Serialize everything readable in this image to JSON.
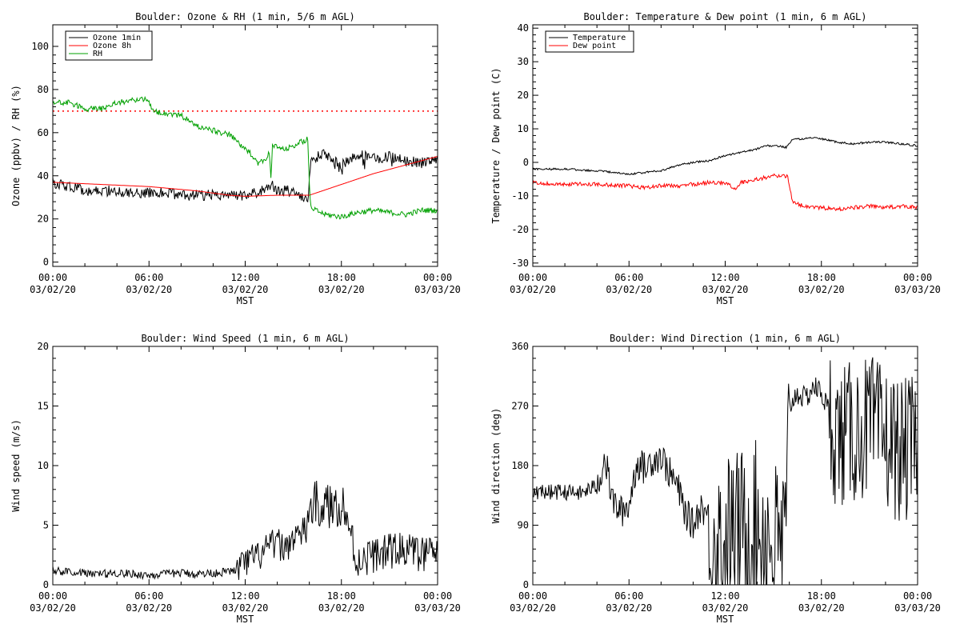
{
  "colors": {
    "black": "#000000",
    "red": "#ff0000",
    "green": "#00a000"
  },
  "chart_data": [
    {
      "type": "line",
      "title": "Boulder: Ozone & RH (1 min, 5/6 m AGL)",
      "xlabel": "MST",
      "ylabel": "Ozone (ppbv) / RH (%)",
      "x_ticks": [
        {
          "t": "00:00",
          "d": "03/02/20"
        },
        {
          "t": "06:00",
          "d": "03/02/20"
        },
        {
          "t": "12:00",
          "d": "03/02/20"
        },
        {
          "t": "18:00",
          "d": "03/02/20"
        },
        {
          "t": "00:00",
          "d": "03/03/20"
        }
      ],
      "xlim": [
        0,
        24
      ],
      "ylim": [
        -2,
        110
      ],
      "y_ticks": [
        0,
        20,
        40,
        60,
        80,
        100
      ],
      "legend_position": "top-left",
      "reference_line": {
        "value": 70,
        "color": "#ff0000",
        "style": "dotted"
      },
      "series": [
        {
          "name": "Ozone 1min",
          "color": "#000000",
          "noise": 2.5,
          "spikes": -6,
          "seed": 11,
          "points": [
            [
              0,
              37
            ],
            [
              1,
              35
            ],
            [
              2,
              33
            ],
            [
              3,
              33
            ],
            [
              4,
              33
            ],
            [
              5,
              32
            ],
            [
              6,
              32
            ],
            [
              7,
              32
            ],
            [
              8,
              31
            ],
            [
              9,
              31
            ],
            [
              10,
              31
            ],
            [
              11,
              31
            ],
            [
              12,
              31
            ],
            [
              13,
              33
            ],
            [
              13.6,
              36
            ],
            [
              14,
              33
            ],
            [
              15,
              33
            ],
            [
              15.9,
              29
            ],
            [
              16.1,
              48
            ],
            [
              17,
              50
            ],
            [
              18,
              45
            ],
            [
              19,
              50
            ],
            [
              20,
              48
            ],
            [
              21,
              49
            ],
            [
              22,
              47
            ],
            [
              23,
              46
            ],
            [
              24,
              48
            ]
          ]
        },
        {
          "name": "Ozone 8h",
          "color": "#ff0000",
          "noise": 0,
          "seed": 0,
          "points": [
            [
              0,
              37
            ],
            [
              3,
              36
            ],
            [
              6,
              35
            ],
            [
              9,
              33
            ],
            [
              11,
              31
            ],
            [
              12,
              30.5
            ],
            [
              14,
              31
            ],
            [
              15.5,
              31
            ],
            [
              16,
              31
            ],
            [
              18,
              36
            ],
            [
              20,
              41
            ],
            [
              22,
              45
            ],
            [
              24,
              49
            ]
          ]
        },
        {
          "name": "RH",
          "color": "#00a000",
          "noise": 1.3,
          "seed": 23,
          "points": [
            [
              0,
              74
            ],
            [
              1,
              74
            ],
            [
              2,
              71
            ],
            [
              3,
              71
            ],
            [
              4,
              74
            ],
            [
              5,
              75
            ],
            [
              5.9,
              76
            ],
            [
              6.2,
              70
            ],
            [
              7,
              69
            ],
            [
              8,
              68
            ],
            [
              9,
              63
            ],
            [
              10,
              61
            ],
            [
              11,
              59
            ],
            [
              11.5,
              56
            ],
            [
              12,
              52
            ],
            [
              12.4,
              50
            ],
            [
              12.8,
              46
            ],
            [
              13.2,
              47
            ],
            [
              13.5,
              51
            ],
            [
              13.6,
              38
            ],
            [
              13.7,
              54
            ],
            [
              14.5,
              52
            ],
            [
              15,
              54
            ],
            [
              15.9,
              57
            ],
            [
              16,
              35
            ],
            [
              16.1,
              25
            ],
            [
              16.4,
              24
            ],
            [
              17,
              22
            ],
            [
              18,
              21
            ],
            [
              19,
              23
            ],
            [
              20,
              24
            ],
            [
              21,
              23
            ],
            [
              22,
              22
            ],
            [
              23,
              24
            ],
            [
              24,
              24
            ]
          ]
        }
      ]
    },
    {
      "type": "line",
      "title": "Boulder: Temperature & Dew point (1 min, 6 m AGL)",
      "xlabel": "MST",
      "ylabel": "Temperature / Dew point (C)",
      "x_ticks": [
        {
          "t": "00:00",
          "d": "03/02/20"
        },
        {
          "t": "06:00",
          "d": "03/02/20"
        },
        {
          "t": "12:00",
          "d": "03/02/20"
        },
        {
          "t": "18:00",
          "d": "03/02/20"
        },
        {
          "t": "00:00",
          "d": "03/03/20"
        }
      ],
      "xlim": [
        0,
        24
      ],
      "ylim": [
        -31,
        41
      ],
      "y_ticks": [
        -30,
        -20,
        -10,
        0,
        10,
        20,
        30,
        40
      ],
      "legend_position": "top-left",
      "series": [
        {
          "name": "Temperature",
          "color": "#000000",
          "noise": 0.3,
          "seed": 5,
          "points": [
            [
              0,
              -2
            ],
            [
              2,
              -2
            ],
            [
              4,
              -2.5
            ],
            [
              5,
              -3
            ],
            [
              6,
              -3.5
            ],
            [
              7,
              -3
            ],
            [
              8,
              -2.5
            ],
            [
              9,
              -1
            ],
            [
              10,
              0
            ],
            [
              11,
              0.5
            ],
            [
              12,
              2
            ],
            [
              13,
              3
            ],
            [
              14,
              4
            ],
            [
              14.5,
              5
            ],
            [
              15,
              5
            ],
            [
              15.8,
              4.5
            ],
            [
              16.2,
              7
            ],
            [
              17,
              7
            ],
            [
              17.5,
              7.5
            ],
            [
              18,
              7
            ],
            [
              19,
              6
            ],
            [
              20,
              5.5
            ],
            [
              21,
              6
            ],
            [
              22,
              6
            ],
            [
              23,
              5.5
            ],
            [
              24,
              5
            ]
          ]
        },
        {
          "name": "Dew point",
          "color": "#ff0000",
          "noise": 0.6,
          "seed": 9,
          "points": [
            [
              0,
              -6
            ],
            [
              2,
              -6.5
            ],
            [
              4,
              -6.5
            ],
            [
              6,
              -7
            ],
            [
              7,
              -7.5
            ],
            [
              8,
              -7
            ],
            [
              9,
              -7
            ],
            [
              10,
              -6.5
            ],
            [
              11,
              -6
            ],
            [
              12,
              -6
            ],
            [
              12.6,
              -8
            ],
            [
              13,
              -6
            ],
            [
              14,
              -5
            ],
            [
              15,
              -4
            ],
            [
              15.9,
              -4
            ],
            [
              16.2,
              -12
            ],
            [
              17,
              -13
            ],
            [
              18,
              -13.5
            ],
            [
              19,
              -14
            ],
            [
              20,
              -13.5
            ],
            [
              21,
              -13
            ],
            [
              22,
              -13.5
            ],
            [
              23,
              -13
            ],
            [
              24,
              -13.5
            ]
          ]
        }
      ]
    },
    {
      "type": "line",
      "title": "Boulder: Wind Speed (1 min, 6 m AGL)",
      "xlabel": "MST",
      "ylabel": "Wind speed (m/s)",
      "x_ticks": [
        {
          "t": "00:00",
          "d": "03/02/20"
        },
        {
          "t": "06:00",
          "d": "03/02/20"
        },
        {
          "t": "12:00",
          "d": "03/02/20"
        },
        {
          "t": "18:00",
          "d": "03/02/20"
        },
        {
          "t": "00:00",
          "d": "03/03/20"
        }
      ],
      "xlim": [
        0,
        24
      ],
      "ylim": [
        0,
        20
      ],
      "y_ticks": [
        0,
        5,
        10,
        15,
        20
      ],
      "series": [
        {
          "name": "",
          "color": "#000000",
          "noise": 0.5,
          "clip": true,
          "seed": 31,
          "points": [
            [
              0,
              1.2
            ],
            [
              2,
              1.0
            ],
            [
              3,
              0.9
            ],
            [
              4,
              1.0
            ],
            [
              5,
              0.9
            ],
            [
              6,
              0.8
            ],
            [
              7,
              0.9
            ],
            [
              8,
              1.0
            ],
            [
              9,
              0.9
            ],
            [
              10,
              1.0
            ],
            [
              11,
              1.1
            ],
            [
              11.5,
              1.3
            ],
            [
              12,
              1.8
            ],
            [
              12.5,
              2.2
            ],
            [
              13,
              2.5
            ],
            [
              13.5,
              3.2
            ],
            [
              14,
              3.5
            ],
            [
              14.5,
              3.0
            ],
            [
              15,
              4.0
            ],
            [
              15.8,
              4.5
            ],
            [
              16,
              6.5
            ],
            [
              16.5,
              6.8
            ],
            [
              17,
              6.5
            ],
            [
              17.5,
              6.5
            ],
            [
              18,
              7.0
            ],
            [
              18.5,
              5.0
            ],
            [
              18.8,
              2.5
            ],
            [
              19,
              2.0
            ],
            [
              20,
              2.5
            ],
            [
              21,
              2.8
            ],
            [
              22,
              3.0
            ],
            [
              23,
              2.5
            ],
            [
              24,
              2.8
            ]
          ],
          "noise_ranges": [
            [
              0,
              11.5,
              0.35
            ],
            [
              11.5,
              16,
              1.3
            ],
            [
              16,
              18.8,
              2.0
            ],
            [
              18.8,
              24,
              1.5
            ]
          ]
        }
      ]
    },
    {
      "type": "line",
      "title": "Boulder: Wind Direction (1 min, 6 m AGL)",
      "xlabel": "MST",
      "ylabel": "Wind direction (deg)",
      "x_ticks": [
        {
          "t": "00:00",
          "d": "03/02/20"
        },
        {
          "t": "06:00",
          "d": "03/02/20"
        },
        {
          "t": "12:00",
          "d": "03/02/20"
        },
        {
          "t": "18:00",
          "d": "03/02/20"
        },
        {
          "t": "00:00",
          "d": "03/03/20"
        }
      ],
      "xlim": [
        0,
        24
      ],
      "ylim": [
        0,
        360
      ],
      "y_ticks": [
        0,
        90,
        180,
        270,
        360
      ],
      "series": [
        {
          "name": "",
          "color": "#000000",
          "noise": 10,
          "clip": true,
          "seed": 47,
          "points": [
            [
              0,
              140
            ],
            [
              2,
              140
            ],
            [
              3,
              138
            ],
            [
              4,
              150
            ],
            [
              4.5,
              190
            ],
            [
              5,
              125
            ],
            [
              5.5,
              110
            ],
            [
              6,
              120
            ],
            [
              6.5,
              185
            ],
            [
              7,
              175
            ],
            [
              7.5,
              190
            ],
            [
              8,
              195
            ],
            [
              8.5,
              170
            ],
            [
              9,
              150
            ],
            [
              9.5,
              110
            ],
            [
              10,
              90
            ],
            [
              10.5,
              120
            ],
            [
              11,
              100
            ],
            [
              11.5,
              60
            ],
            [
              12,
              70
            ],
            [
              13,
              80
            ],
            [
              14,
              90
            ],
            [
              15,
              60
            ],
            [
              15.8,
              70
            ],
            [
              16,
              270
            ],
            [
              16.5,
              290
            ],
            [
              17,
              280
            ],
            [
              17.5,
              300
            ],
            [
              18,
              290
            ],
            [
              18.5,
              260
            ],
            [
              19,
              220
            ],
            [
              20,
              230
            ],
            [
              21,
              240
            ],
            [
              22,
              220
            ],
            [
              23,
              200
            ],
            [
              24,
              210
            ]
          ],
          "noise_ranges": [
            [
              0,
              4,
              12
            ],
            [
              4,
              11,
              25
            ],
            [
              11,
              16,
              130
            ],
            [
              16,
              18.5,
              18
            ],
            [
              18.5,
              24,
              110
            ]
          ]
        }
      ]
    }
  ]
}
